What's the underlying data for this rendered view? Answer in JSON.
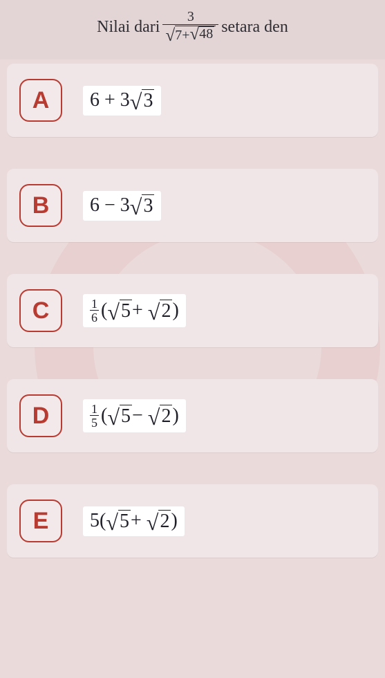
{
  "question": {
    "prefix": "Nilai dari",
    "fraction": {
      "numerator": "3",
      "outer_radicand_prefix": "7+",
      "inner_radicand": "48"
    },
    "suffix": "setara den"
  },
  "options": [
    {
      "letter": "A",
      "expr_type": "surd_sum",
      "left": "6 + 3",
      "radicand": "3"
    },
    {
      "letter": "B",
      "expr_type": "surd_sum",
      "left": "6 − 3",
      "radicand": "3"
    },
    {
      "letter": "C",
      "expr_type": "frac_two_surd",
      "frac_num": "1",
      "frac_den": "6",
      "radicand1": "5",
      "op": "+",
      "radicand2": "2"
    },
    {
      "letter": "D",
      "expr_type": "frac_two_surd",
      "frac_num": "1",
      "frac_den": "5",
      "radicand1": "5",
      "op": "−",
      "radicand2": "2"
    },
    {
      "letter": "E",
      "expr_type": "coef_two_surd",
      "coef": "5",
      "radicand1": "5",
      "op": "+",
      "radicand2": "2"
    }
  ],
  "colors": {
    "page_bg": "#eadada",
    "card_bg": "#f1e6e7",
    "letter_border": "#b83b32",
    "answer_bg": "#ffffff",
    "text": "#1f1f29",
    "watermark": "#e6c9c9"
  }
}
